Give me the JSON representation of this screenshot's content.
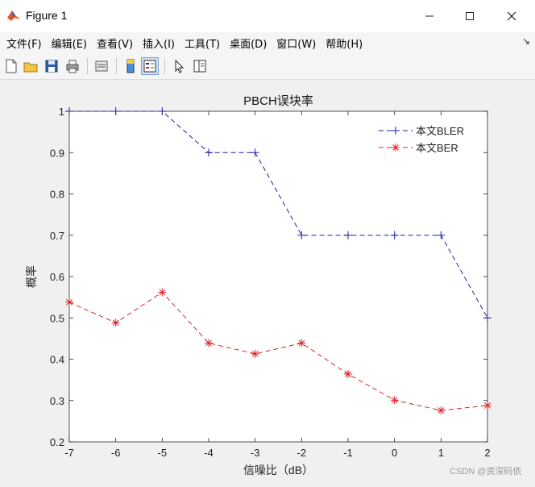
{
  "window": {
    "title": "Figure 1"
  },
  "menu": [
    {
      "label": "文件(F)"
    },
    {
      "label": "编辑(E)"
    },
    {
      "label": "查看(V)"
    },
    {
      "label": "插入(I)"
    },
    {
      "label": "工具(T)"
    },
    {
      "label": "桌面(D)"
    },
    {
      "label": "窗口(W)"
    },
    {
      "label": "帮助(H)"
    }
  ],
  "toolbar": [
    "new-figure-icon",
    "open-file-icon",
    "save-icon",
    "print-icon",
    "print-preview-icon",
    "colorbar-icon",
    "legend-icon",
    "pointer-icon",
    "property-editor-icon"
  ],
  "watermark": "CSDN @资深码侬",
  "chart_data": {
    "type": "line",
    "title": "PBCH误块率",
    "xlabel": "信噪比（dB）",
    "ylabel": "概率",
    "xlim": [
      -7,
      2
    ],
    "ylim": [
      0.2,
      1
    ],
    "xticks": [
      -7,
      -6,
      -5,
      -4,
      -3,
      -2,
      -1,
      0,
      1,
      2
    ],
    "yticks": [
      0.2,
      0.3,
      0.4,
      0.5,
      0.6,
      0.7,
      0.8,
      0.9,
      1
    ],
    "x": [
      -7,
      -6,
      -5,
      -4,
      -3,
      -2,
      -1,
      0,
      1,
      2
    ],
    "grid": false,
    "legend_position": "top-right",
    "series": [
      {
        "name": "本文BLER",
        "values": [
          1,
          1,
          1,
          0.9,
          0.9,
          0.7,
          0.7,
          0.7,
          0.7,
          0.5
        ],
        "color": "#1f1f9e",
        "marker": "+",
        "line_style": "dashed"
      },
      {
        "name": "本文BER",
        "values": [
          0.538,
          0.488,
          0.562,
          0.439,
          0.413,
          0.439,
          0.364,
          0.301,
          0.276,
          0.288
        ],
        "color": "#d9232a",
        "marker": "*",
        "line_style": "dashed"
      }
    ]
  }
}
